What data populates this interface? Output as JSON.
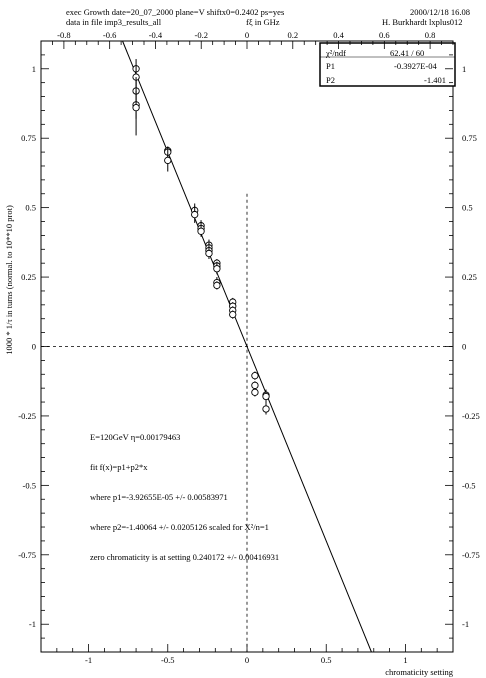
{
  "header": {
    "line1": "exec Growth date=20_07_2000 plane=V shiftx0=0.2402 ps=yes",
    "line2": "data in file imp3_results_all",
    "top_axis_label": "fξ in GHz",
    "date": "2000/12/18  16.08",
    "author": "H. Burkhardt  lxplus012"
  },
  "stats": {
    "chi2_label": "χ²/ndf",
    "chi2_value": "62.41  /  60",
    "p1_label": "P1",
    "p1_value": "-0.3927E-04",
    "p2_label": "P2",
    "p2_value": "-1.401"
  },
  "annotations": [
    "E=120GeV  η=0.00179463",
    "fit f(x)=p1+p2*x",
    "where p1=-3.92655E-05 +/- 0.00583971",
    "where p2=-1.40064 +/- 0.0205126 scaled for Χ²/n=1",
    "zero chromaticity is at setting 0.240172 +/- 0.00416931"
  ],
  "chart_data": {
    "type": "scatter",
    "xlabel": "chromaticity setting",
    "ylabel": "1000 * 1/τ in turns  (normal. to 10**10 prot)",
    "top_xlabel": "fξ in GHz",
    "xlim": [
      -1.3,
      1.3
    ],
    "ylim": [
      -1.1,
      1.1
    ],
    "top_xlim": [
      -0.9,
      0.9
    ],
    "x_ticks": [
      "-1",
      "-0.5",
      "0",
      "0.5",
      "1"
    ],
    "top_ticks": [
      "-0.8",
      "-0.6",
      "-0.4",
      "-0.2",
      "0",
      "0.2",
      "0.4",
      "0.6",
      "0.8"
    ],
    "y_ticks": [
      "1",
      "0.75",
      "0.5",
      "0.25",
      "0",
      "-0.25",
      "-0.5",
      "-0.75",
      "-1"
    ],
    "fit": {
      "p1": -3.92655e-05,
      "p2": -1.40064
    },
    "reference_lines": {
      "x": 0,
      "y": 0
    },
    "points": [
      {
        "x": -0.7,
        "y": 1.0,
        "err": 0.035
      },
      {
        "x": -0.7,
        "y": 0.97,
        "err": 0.04
      },
      {
        "x": -0.7,
        "y": 0.92,
        "err": 0.05
      },
      {
        "x": -0.7,
        "y": 0.87,
        "err": 0.05
      },
      {
        "x": -0.7,
        "y": 0.86,
        "err": 0.1
      },
      {
        "x": -0.5,
        "y": 0.705,
        "err": 0.015
      },
      {
        "x": -0.5,
        "y": 0.7,
        "err": 0.02
      },
      {
        "x": -0.5,
        "y": 0.67,
        "err": 0.04
      },
      {
        "x": -0.33,
        "y": 0.49,
        "err": 0.025
      },
      {
        "x": -0.33,
        "y": 0.475,
        "err": 0.03
      },
      {
        "x": -0.29,
        "y": 0.435,
        "err": 0.02
      },
      {
        "x": -0.29,
        "y": 0.425,
        "err": 0.02
      },
      {
        "x": -0.29,
        "y": 0.415,
        "err": 0.02
      },
      {
        "x": -0.24,
        "y": 0.365,
        "err": 0.02
      },
      {
        "x": -0.24,
        "y": 0.355,
        "err": 0.02
      },
      {
        "x": -0.24,
        "y": 0.345,
        "err": 0.025
      },
      {
        "x": -0.24,
        "y": 0.335,
        "err": 0.02
      },
      {
        "x": -0.19,
        "y": 0.3,
        "err": 0.015
      },
      {
        "x": -0.19,
        "y": 0.29,
        "err": 0.015
      },
      {
        "x": -0.19,
        "y": 0.28,
        "err": 0.02
      },
      {
        "x": -0.19,
        "y": 0.23,
        "err": 0.02
      },
      {
        "x": -0.19,
        "y": 0.22,
        "err": 0.015
      },
      {
        "x": -0.09,
        "y": 0.16,
        "err": 0.015
      },
      {
        "x": -0.09,
        "y": 0.145,
        "err": 0.015
      },
      {
        "x": -0.09,
        "y": 0.13,
        "err": 0.015
      },
      {
        "x": -0.09,
        "y": 0.115,
        "err": 0.015
      },
      {
        "x": 0.05,
        "y": -0.105,
        "err": 0.015
      },
      {
        "x": 0.05,
        "y": -0.14,
        "err": 0.015
      },
      {
        "x": 0.05,
        "y": -0.165,
        "err": 0.015
      },
      {
        "x": 0.12,
        "y": -0.175,
        "err": 0.015
      },
      {
        "x": 0.12,
        "y": -0.18,
        "err": 0.025
      },
      {
        "x": 0.12,
        "y": -0.225,
        "err": 0.02
      }
    ]
  }
}
